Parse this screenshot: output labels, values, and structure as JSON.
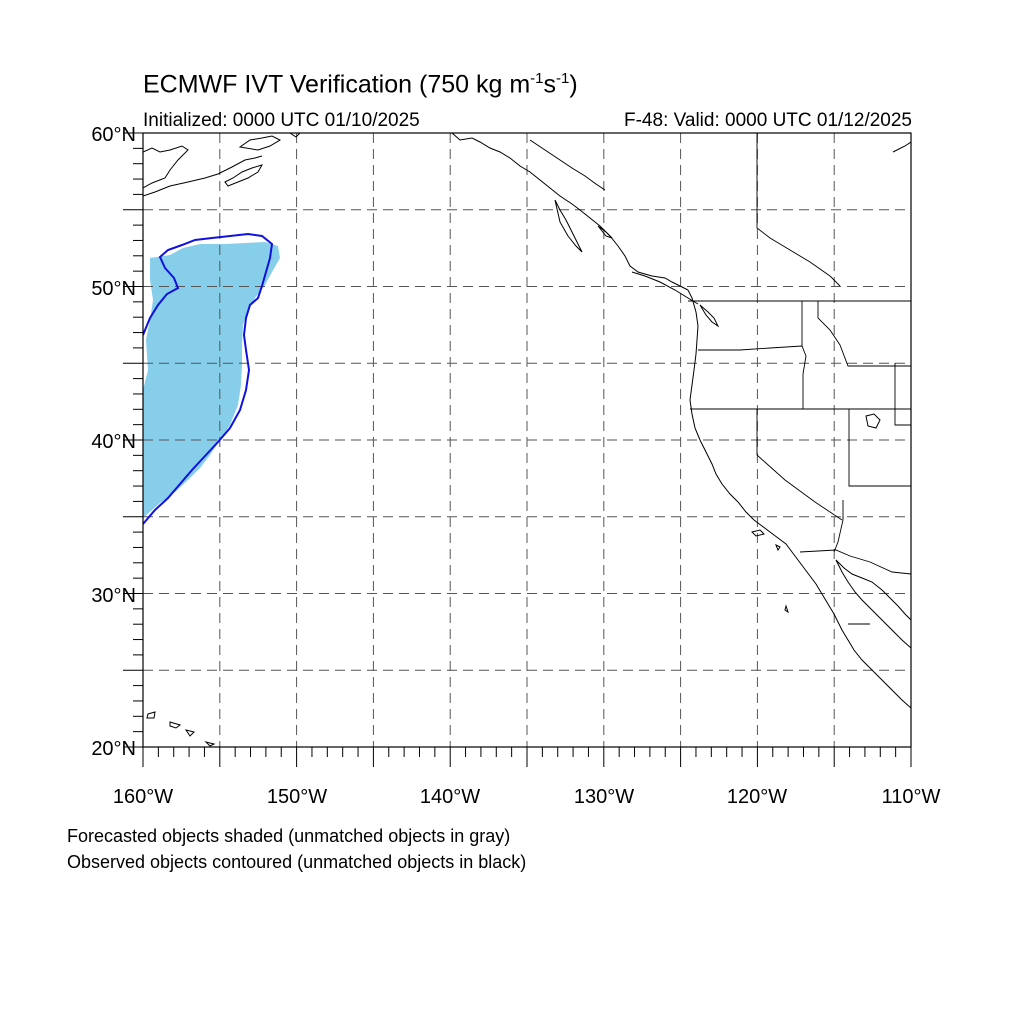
{
  "title": {
    "main": "ECMWF IVT Verification (750 kg m",
    "sup1": "-1",
    "mid": "s",
    "sup2": "-1",
    "end": ")"
  },
  "subtitle": {
    "initialized": "Initialized: 0000 UTC 01/10/2025",
    "valid": "F-48: Valid: 0000 UTC 01/12/2025"
  },
  "map": {
    "lon_range": [
      -160,
      -110
    ],
    "lat_range": [
      20,
      60
    ],
    "lat_labels": [
      "20°N",
      "30°N",
      "40°N",
      "50°N",
      "60°N"
    ],
    "lon_labels": [
      "160°W",
      "150°W",
      "140°W",
      "130°W",
      "120°W",
      "110°W"
    ],
    "gridlines": "dashed every 5°",
    "forecast_fill_color": "#87ceeb",
    "observed_contour_color": "#1111dd"
  },
  "notes": {
    "line1": "Forecasted objects shaded (unmatched objects in gray)",
    "line2": "Observed objects contoured (unmatched objects in black)"
  }
}
